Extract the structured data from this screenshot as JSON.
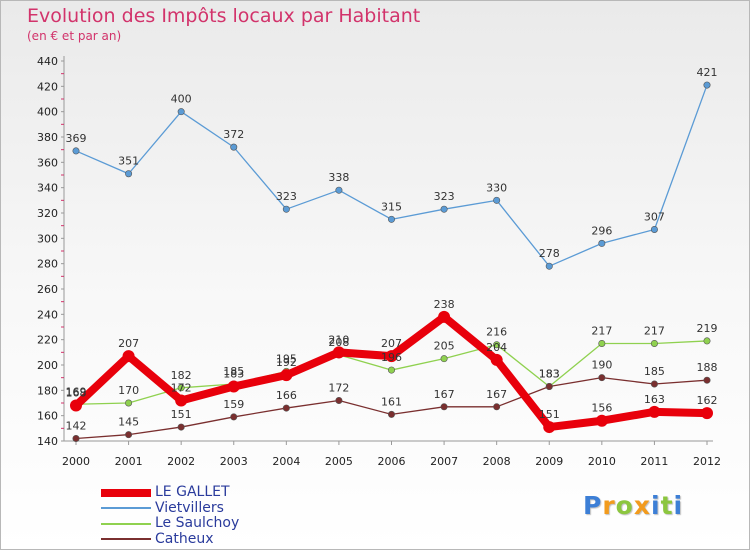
{
  "chart_data": {
    "type": "line",
    "title": "Evolution des Impôts locaux par Habitant",
    "subtitle": "(en € et par an)",
    "xlabel": "",
    "ylabel": "",
    "ylim": [
      140,
      440
    ],
    "ytick_step": 20,
    "x": [
      2000,
      2001,
      2002,
      2003,
      2004,
      2005,
      2006,
      2007,
      2008,
      2009,
      2010,
      2011,
      2012
    ],
    "grid": false,
    "legend_position": "bottom-left",
    "series": [
      {
        "name": "LE GALLET",
        "color": "#e8000b",
        "emphasis": true,
        "values": [
          168,
          207,
          172,
          183,
          192,
          210,
          207,
          238,
          204,
          151,
          156,
          163,
          162
        ]
      },
      {
        "name": "Vietvillers",
        "color": "#5b9bd5",
        "emphasis": false,
        "values": [
          369,
          351,
          400,
          372,
          323,
          338,
          315,
          323,
          330,
          278,
          296,
          307,
          421
        ]
      },
      {
        "name": "Le Saulchoy",
        "color": "#8fd14f",
        "emphasis": false,
        "values": [
          169,
          170,
          182,
          185,
          195,
          208,
          196,
          205,
          216,
          183,
          217,
          217,
          219
        ]
      },
      {
        "name": "Catheux",
        "color": "#7a2f2f",
        "emphasis": false,
        "values": [
          142,
          145,
          151,
          159,
          166,
          172,
          161,
          167,
          167,
          183,
          190,
          185,
          188
        ]
      }
    ]
  },
  "legend": {
    "items": [
      {
        "label": "LE GALLET",
        "color": "#e8000b"
      },
      {
        "label": "Vietvillers",
        "color": "#5b9bd5"
      },
      {
        "label": "Le Saulchoy",
        "color": "#8fd14f"
      },
      {
        "label": "Catheux",
        "color": "#7a2f2f"
      }
    ]
  },
  "logo": {
    "text": "Proxiti",
    "letters": [
      {
        "ch": "P",
        "color": "#3d7fd6"
      },
      {
        "ch": "r",
        "color": "#f29b1d"
      },
      {
        "ch": "o",
        "color": "#8cc63f"
      },
      {
        "ch": "x",
        "color": "#f29b1d"
      },
      {
        "ch": "i",
        "color": "#3d7fd6"
      },
      {
        "ch": "t",
        "color": "#8cc63f"
      },
      {
        "ch": "i",
        "color": "#3d7fd6"
      }
    ]
  }
}
